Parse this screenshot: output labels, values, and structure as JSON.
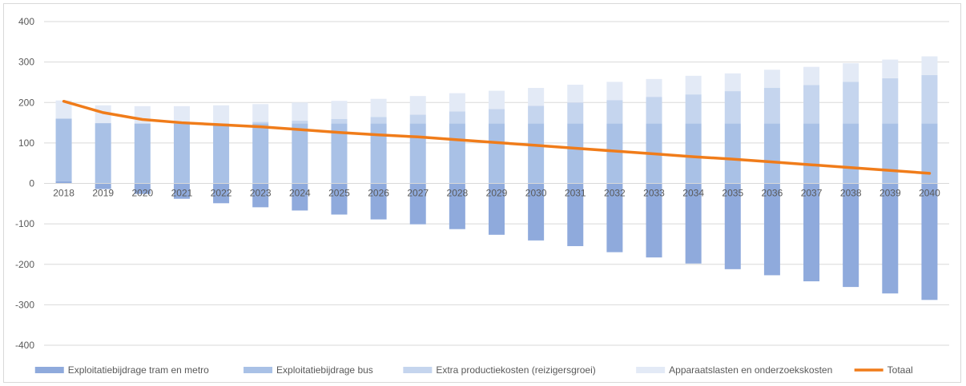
{
  "chart_data": {
    "type": "bar",
    "title": "",
    "xlabel": "",
    "ylabel": "",
    "ylim": [
      -400,
      400
    ],
    "yticks": [
      400,
      300,
      200,
      100,
      0,
      -100,
      -200,
      -300,
      -400
    ],
    "grid": true,
    "legend_position": "bottom",
    "categories": [
      "2018",
      "2019",
      "2020",
      "2021",
      "2022",
      "2023",
      "2024",
      "2025",
      "2026",
      "2027",
      "2028",
      "2029",
      "2030",
      "2031",
      "2032",
      "2033",
      "2034",
      "2035",
      "2036",
      "2037",
      "2038",
      "2039",
      "2040"
    ],
    "series": [
      {
        "name": "Exploitatiebijdrage tram en metro",
        "type": "bar",
        "color": "#8faadc",
        "values": [
          5,
          -14,
          -26,
          -38,
          -49,
          -59,
          -67,
          -77,
          -89,
          -101,
          -113,
          -127,
          -141,
          -155,
          -170,
          -183,
          -198,
          -212,
          -227,
          -242,
          -256,
          -272,
          -288
        ]
      },
      {
        "name": "Exploitatiebijdrage bus",
        "type": "bar",
        "color": "#a9c1e6",
        "values": [
          155,
          149,
          148,
          148,
          148,
          148,
          148,
          148,
          148,
          148,
          148,
          148,
          148,
          148,
          148,
          148,
          148,
          148,
          148,
          148,
          148,
          148,
          148
        ]
      },
      {
        "name": "Extra productiekosten (reizigersgroei)",
        "type": "bar",
        "color": "#c5d5ee",
        "values": [
          0,
          0,
          0,
          0,
          0,
          4,
          7,
          11,
          16,
          22,
          30,
          36,
          44,
          52,
          58,
          66,
          72,
          80,
          88,
          95,
          103,
          112,
          120
        ]
      },
      {
        "name": "Apparaatslasten en onderzoekskosten",
        "type": "bar",
        "color": "#e3eaf6",
        "values": [
          45,
          44,
          43,
          43,
          45,
          44,
          45,
          45,
          45,
          46,
          45,
          45,
          44,
          44,
          45,
          44,
          46,
          44,
          45,
          45,
          46,
          46,
          46
        ]
      },
      {
        "name": "Totaal",
        "type": "line",
        "color": "#f07c1a",
        "values": [
          203,
          175,
          158,
          150,
          145,
          140,
          133,
          126,
          120,
          115,
          108,
          101,
          94,
          87,
          80,
          73,
          66,
          60,
          53,
          46,
          39,
          32,
          25
        ]
      }
    ]
  }
}
